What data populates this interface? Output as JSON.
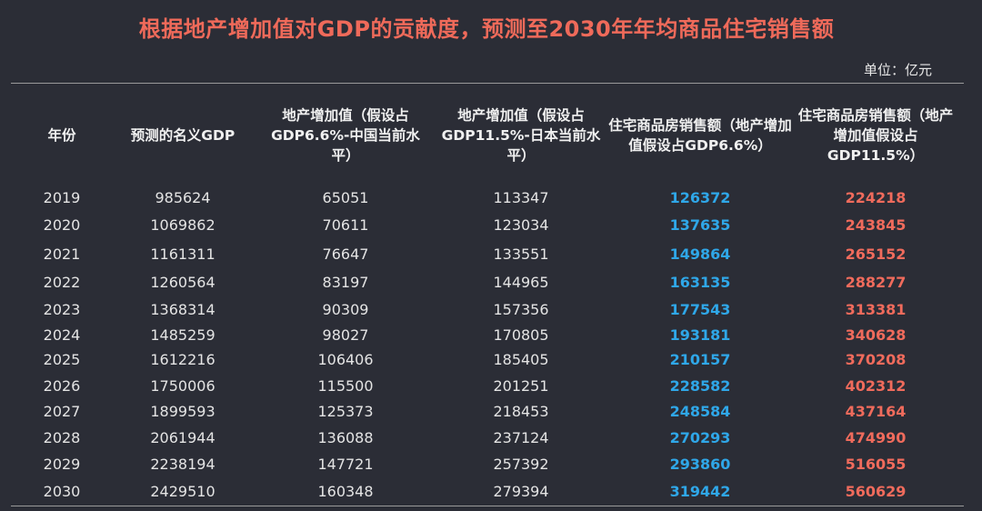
{
  "title": "根据地产增加值对GDP的贡献度，预测至2030年年均商品住宅销售额",
  "unit": "单位：亿元",
  "chart_data": {
    "type": "table",
    "columns": [
      "年份",
      "预测的名义GDP",
      "地产增加值（假设占GDP6.6%-中国当前水平）",
      "地产增加值（假设占GDP11.5%-日本当前水平）",
      "住宅商品房销售额（地产增加值假设占GDP6.6%）",
      "住宅商品房销售额（地产增加值假设占GDP11.5%）"
    ],
    "rows": [
      [
        "2019",
        "985624",
        "65051",
        "113347",
        "126372",
        "224218"
      ],
      [
        "2020",
        "1069862",
        "70611",
        "123034",
        "137635",
        "243845"
      ],
      [
        "2021",
        "1161311",
        "76647",
        "133551",
        "149864",
        "265152"
      ],
      [
        "2022",
        "1260564",
        "83197",
        "144965",
        "163135",
        "288277"
      ],
      [
        "2023",
        "1368314",
        "90309",
        "157356",
        "177543",
        "313381"
      ],
      [
        "2024",
        "1485259",
        "98027",
        "170805",
        "193181",
        "340628"
      ],
      [
        "2025",
        "1612216",
        "106406",
        "185405",
        "210157",
        "370208"
      ],
      [
        "2026",
        "1750006",
        "115500",
        "201251",
        "228582",
        "402312"
      ],
      [
        "2027",
        "1899593",
        "125373",
        "218453",
        "248584",
        "437164"
      ],
      [
        "2028",
        "2061944",
        "136088",
        "237124",
        "270293",
        "474990"
      ],
      [
        "2029",
        "2238194",
        "147721",
        "257392",
        "293860",
        "516055"
      ],
      [
        "2030",
        "2429510",
        "160348",
        "279394",
        "319442",
        "560629"
      ]
    ]
  },
  "colors": {
    "background": "#2b2d36",
    "title": "#ef6a5a",
    "blue_column": "#2fa7e8",
    "red_column": "#f06b5c"
  }
}
